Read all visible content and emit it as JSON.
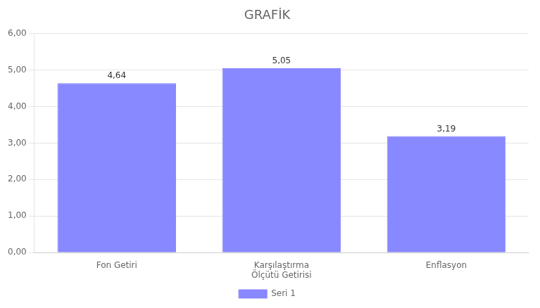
{
  "chart_data": {
    "type": "bar",
    "title": "GRAFİK",
    "categories": [
      "Fon Getiri",
      "Karşılaştırma\nÖlçütü Getirisi",
      "Enflasyon"
    ],
    "series": [
      {
        "name": "Seri 1",
        "color": "#8888ff",
        "values": [
          4.64,
          5.05,
          3.19
        ],
        "value_labels": [
          "4,64",
          "5,05",
          "3,19"
        ]
      }
    ],
    "ylim": [
      0,
      6.0
    ],
    "yticks": [
      {
        "value": 0.0,
        "label": "0,00"
      },
      {
        "value": 1.0,
        "label": "1,00"
      },
      {
        "value": 2.0,
        "label": "2,00"
      },
      {
        "value": 3.0,
        "label": "3,00"
      },
      {
        "value": 4.0,
        "label": "4,00"
      },
      {
        "value": 5.0,
        "label": "5,00"
      },
      {
        "value": 6.0,
        "label": "6,00"
      }
    ],
    "grid": true,
    "legend": "bottom",
    "data_labels": true
  }
}
